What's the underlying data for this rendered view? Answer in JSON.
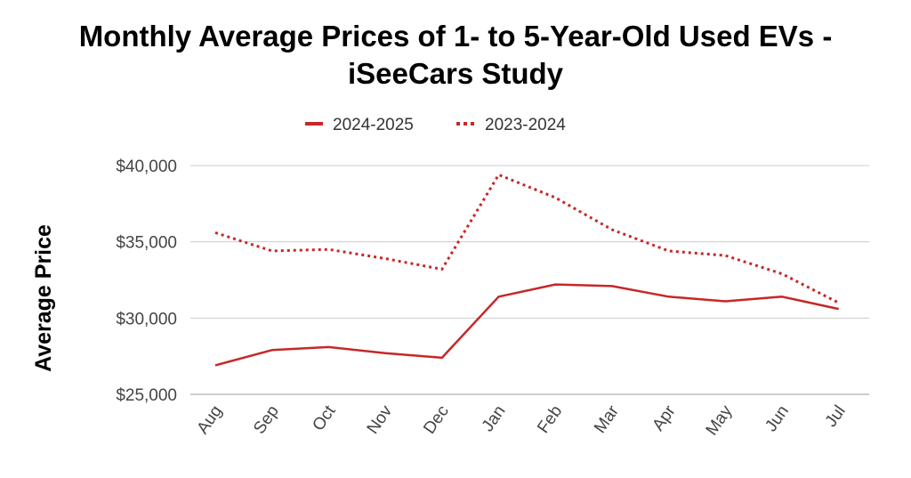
{
  "chart_data": {
    "type": "line",
    "title_line1": "Monthly Average Prices of 1- to 5-Year-Old Used EVs -",
    "title_line2": "iSeeCars Study",
    "ylabel": "Average Price",
    "xlabel": "",
    "categories": [
      "Aug",
      "Sep",
      "Oct",
      "Nov",
      "Dec",
      "Jan",
      "Feb",
      "Mar",
      "Apr",
      "May",
      "Jun",
      "Jul"
    ],
    "ylim": [
      25000,
      40000
    ],
    "yticks": [
      25000,
      30000,
      35000,
      40000
    ],
    "ytick_labels": [
      "$25,000",
      "$30,000",
      "$35,000",
      "$40,000"
    ],
    "grid": true,
    "legend_position": "top-center",
    "series": [
      {
        "name": "2024-2025",
        "style": "solid",
        "color": "#c62828",
        "values": [
          26900,
          27900,
          28100,
          27700,
          27400,
          31400,
          32200,
          32100,
          31400,
          31100,
          31400,
          30600
        ]
      },
      {
        "name": "2023-2024",
        "style": "dotted",
        "color": "#c62828",
        "values": [
          35600,
          34400,
          34500,
          33900,
          33200,
          39400,
          37900,
          35800,
          34400,
          34100,
          32900,
          31000
        ]
      }
    ]
  }
}
